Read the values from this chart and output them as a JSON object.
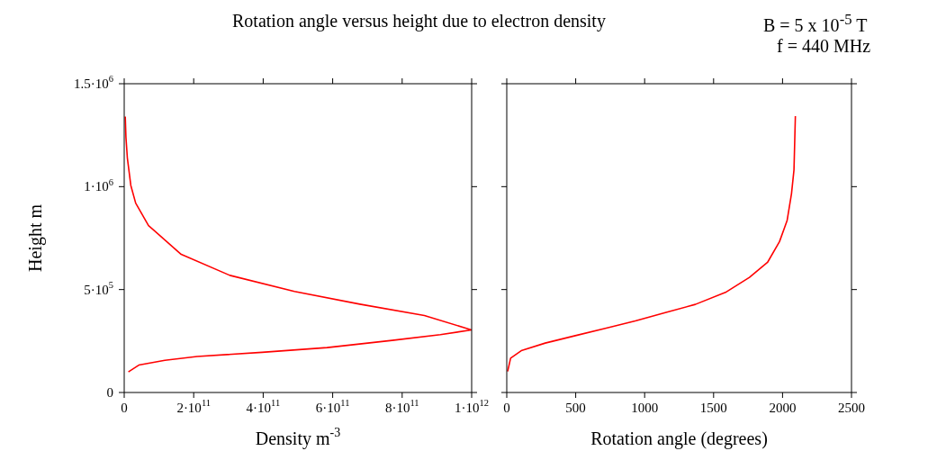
{
  "chart_data": [
    {
      "type": "line",
      "title": "Rotation angle versus height due to electron density",
      "annotations": [
        "B = 5 x 10$^{-5}$ T",
        "f = 440 MHz"
      ],
      "xlabel": "Density m$^{-3}$",
      "ylabel": "Height  m",
      "x": [
        12000000000.0,
        42000000000.0,
        117000000000.0,
        210000000000.0,
        397000000000.0,
        584000000000.0,
        771000000000.0,
        910000000000.0,
        1000000000000.0,
        864000000000.0,
        678000000000.0,
        490000000000.0,
        304000000000.0,
        164000000000.0,
        70000000000.0,
        33000000000.0,
        19000000000.0,
        9000000000.0,
        5000000000.0,
        3000000000.0
      ],
      "series": [
        {
          "color": "#ff0000",
          "values": [
            100000.0,
            133000.0,
            156000.0,
            175000.0,
            195000.0,
            218000.0,
            253000.0,
            281000.0,
            304000.0,
            374000.0,
            429000.0,
            491000.0,
            569000.0,
            671000.0,
            811000.0,
            920000.0,
            1006000.0,
            1140000.0,
            1240000.0,
            1340000.0
          ]
        }
      ],
      "xlim": [
        0,
        1000000000000.0
      ],
      "xticks": [
        0,
        {
          "value": 200000000000.0,
          "label": "2·10$^{11}$"
        },
        {
          "value": 400000000000.0,
          "label": "4·10$^{11}$"
        },
        {
          "value": 600000000000.0,
          "label": "6·10$^{11}$"
        },
        {
          "value": 800000000000.0,
          "label": "8·10$^{11}$"
        },
        {
          "value": 1000000000000.0,
          "label": "1·10$^{12}$"
        }
      ],
      "ylim": [
        0,
        1500000.0
      ],
      "yticks": [
        0,
        {
          "value": 500000.0,
          "label": "5·10$^{5}$"
        },
        {
          "value": 1000000.0,
          "label": "1·10$^{6}$"
        },
        {
          "value": 1500000.0,
          "label": "1.5·10$^{6}$"
        }
      ]
    },
    {
      "type": "line",
      "xlabel": "Rotation angle (degrees)",
      "x": [
        6.5,
        28,
        105,
        279,
        497,
        715,
        932,
        1150,
        1368,
        1586,
        1760,
        1891,
        1978,
        2033,
        2065,
        2083,
        2093
      ],
      "series": [
        {
          "color": "#ff0000",
          "values": [
            102000.0,
            167000.0,
            203000.0,
            240000.0,
            276000.0,
            312000.0,
            348000.0,
            388000.0,
            428000.0,
            486000.0,
            559000.0,
            632000.0,
            733000.0,
            835000.0,
            966000.0,
            1082000.0,
            1343000.0
          ]
        }
      ],
      "xlim": [
        0,
        2500
      ],
      "xticks": [
        0,
        500,
        1000,
        1500,
        2000,
        2500
      ],
      "ylim": [
        0,
        1500000.0
      ],
      "yticks": [
        {
          "value": 0,
          "label": null
        },
        {
          "value": 500000.0,
          "label": null
        },
        {
          "value": 1000000.0,
          "label": null
        },
        {
          "value": 1500000.0,
          "label": null
        }
      ],
      "tick_labels": "x"
    }
  ]
}
